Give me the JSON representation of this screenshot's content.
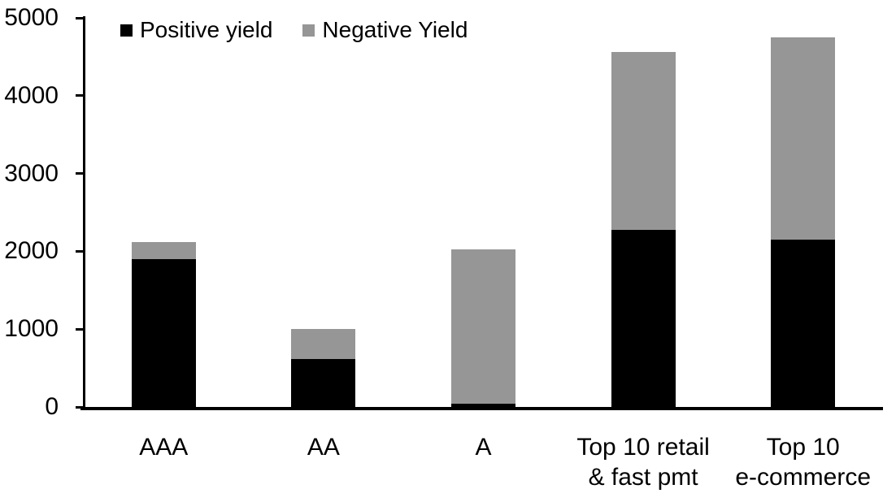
{
  "chart_data": {
    "type": "bar",
    "stacked": true,
    "title": "",
    "xlabel": "",
    "ylabel": "",
    "categories": [
      "AAA",
      "AA",
      "A",
      "Top 10 retail\n& fast pmt",
      "Top 10\ne-commerce"
    ],
    "series": [
      {
        "name": "Positive yield",
        "color": "#000000",
        "values": [
          1900,
          620,
          45,
          2280,
          2150
        ]
      },
      {
        "name": "Negative Yield",
        "color": "#969696",
        "values": [
          220,
          385,
          1985,
          2280,
          2600
        ]
      }
    ],
    "totals": [
      2120,
      1005,
      2030,
      4560,
      4750
    ],
    "ylim": [
      0,
      5000
    ],
    "yticks": [
      0,
      1000,
      2000,
      3000,
      4000,
      5000
    ],
    "grid": false,
    "legend_position": "top-left",
    "axis_color": "#000000",
    "background_color": "#ffffff"
  }
}
